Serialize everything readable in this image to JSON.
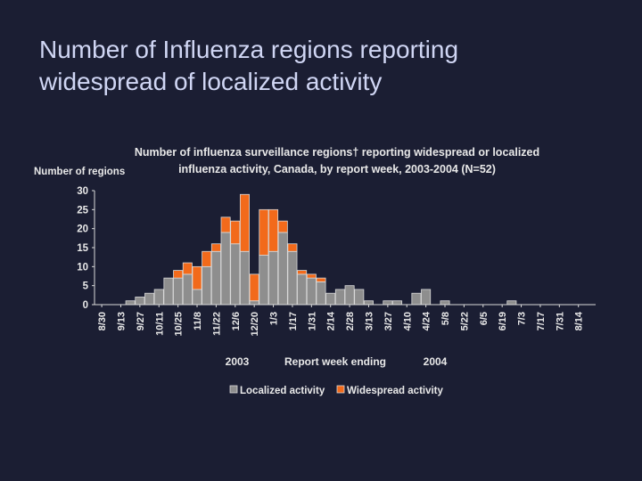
{
  "slide": {
    "title_line1": "Number of Influenza regions reporting",
    "title_line2": "widespread of localized activity"
  },
  "colors": {
    "background": "#1b1e33",
    "localized": "#8e8e8e",
    "widespread": "#f26a1b",
    "bar_stroke": "#d9d9d9",
    "text": "#e9e9e9"
  },
  "chart_data": {
    "type": "bar",
    "stacked": true,
    "title_line1": "Number of influenza surveillance regions† reporting widespread or localized",
    "title_line2": "influenza activity, Canada, by report week, 2003-2004 (N=52)",
    "ylabel": "Number of regions",
    "xlabel": "Report week ending",
    "year_labels": [
      "2003",
      "2004"
    ],
    "ylim": [
      0,
      30
    ],
    "yticks": [
      0,
      5,
      10,
      15,
      20,
      25,
      30
    ],
    "tick_labels": [
      "8/30",
      "9/13",
      "9/27",
      "10/11",
      "10/25",
      "11/8",
      "11/22",
      "12/6",
      "12/20",
      "1/3",
      "1/17",
      "1/31",
      "2/14",
      "2/28",
      "3/13",
      "3/27",
      "4/10",
      "4/24",
      "5/8",
      "5/22",
      "6/5",
      "6/19",
      "7/3",
      "7/17",
      "7/31",
      "8/14"
    ],
    "series": [
      {
        "name": "Localized activity",
        "values": [
          0,
          0,
          0,
          1,
          2,
          3,
          4,
          7,
          7,
          8,
          4,
          10,
          14,
          19,
          16,
          14,
          1,
          13,
          14,
          19,
          14,
          8,
          7,
          6,
          3,
          4,
          5,
          4,
          1,
          0,
          1,
          1,
          0,
          3,
          4,
          0,
          1,
          0,
          0,
          0,
          0,
          0,
          0,
          1,
          0,
          0,
          0,
          0,
          0,
          0,
          0,
          0
        ]
      },
      {
        "name": "Widespread activity",
        "values": [
          0,
          0,
          0,
          0,
          0,
          0,
          0,
          0,
          2,
          3,
          6,
          4,
          2,
          4,
          6,
          15,
          7,
          12,
          11,
          3,
          2,
          1,
          1,
          1,
          0,
          0,
          0,
          0,
          0,
          0,
          0,
          0,
          0,
          0,
          0,
          0,
          0,
          0,
          0,
          0,
          0,
          0,
          0,
          0,
          0,
          0,
          0,
          0,
          0,
          0,
          0,
          0
        ]
      }
    ],
    "legend": [
      "Localized activity",
      "Widespread activity"
    ],
    "legend_position": "bottom"
  }
}
